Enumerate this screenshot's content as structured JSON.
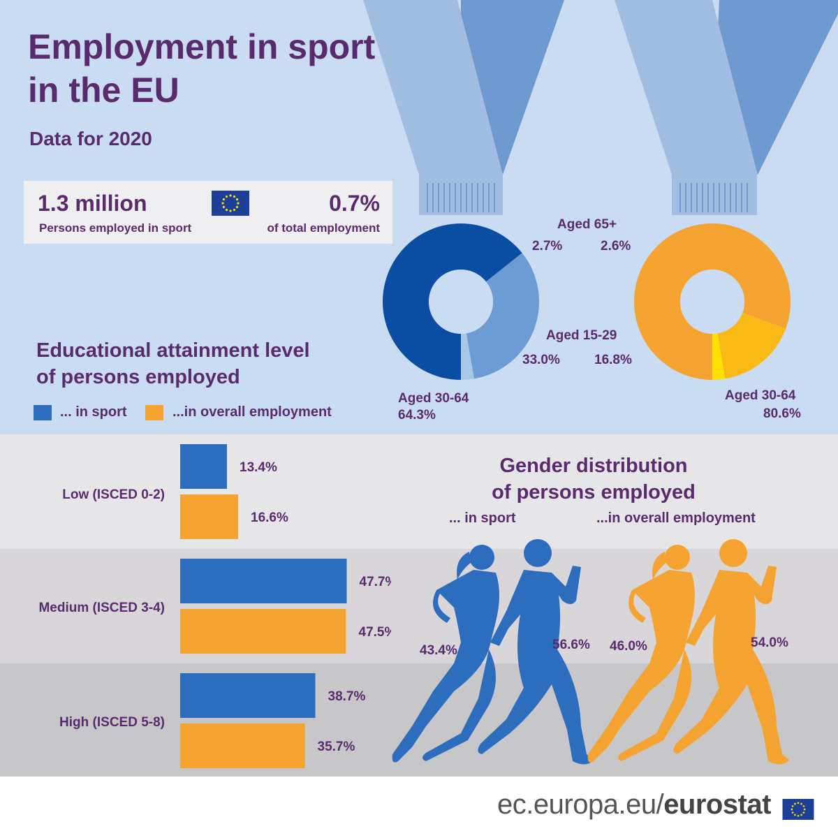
{
  "header": {
    "title_line1": "Employment in sport",
    "title_line2": "in the EU",
    "subtitle": "Data for 2020"
  },
  "kpis": {
    "persons_value": "1.3 million",
    "persons_label": "Persons employed in sport",
    "share_value": "0.7%",
    "share_label": "of total employment",
    "flag_icon": "eu-flag-icon"
  },
  "education": {
    "title_line1": "Educational attainment level",
    "title_line2": "of persons employed",
    "legend_sport": "... in sport",
    "legend_overall": "...in overall employment"
  },
  "age_labels": {
    "aged_65": "Aged 65+",
    "aged_15_29": "Aged 15-29",
    "aged_30_64": "Aged 30-64",
    "sport_65": "2.7%",
    "overall_65": "2.6%",
    "sport_15_29": "33.0%",
    "overall_15_29": "16.8%",
    "sport_30_64": "64.3%",
    "overall_30_64": "80.6%"
  },
  "gender": {
    "title_line1": "Gender distribution",
    "title_line2": "of persons employed",
    "sub_sport": "... in sport",
    "sub_overall": "...in overall employment",
    "sport_female": "43.4%",
    "sport_male": "56.6%",
    "overall_female": "46.0%",
    "overall_male": "54.0%"
  },
  "footer": {
    "url_prefix": "ec.europa.eu/",
    "url_brand": "eurostat"
  },
  "colors": {
    "sport": "#2c6dbd",
    "overall": "#f5a431",
    "title_purple": "#5a2a6e",
    "panel_blue": "#cadcf1",
    "sport_donut_dark": "#0a4ea3",
    "sport_donut_mid": "#6d9bd3",
    "sport_donut_light": "#a9c7e8",
    "overall_donut_main": "#f5a431",
    "overall_donut_mid": "#fbb917",
    "overall_donut_light": "#ffe000"
  },
  "chart_data": [
    {
      "type": "pie",
      "title": "... in sport",
      "categories": [
        "Aged 30-64",
        "Aged 15-29",
        "Aged 65+"
      ],
      "values": [
        64.3,
        33.0,
        2.7
      ]
    },
    {
      "type": "pie",
      "title": "...in overall employment",
      "categories": [
        "Aged 30-64",
        "Aged 15-29",
        "Aged 65+"
      ],
      "values": [
        80.6,
        16.8,
        2.6
      ]
    },
    {
      "type": "bar",
      "title": "Educational attainment level of persons employed",
      "categories": [
        "Low (ISCED 0-2)",
        "Medium (ISCED 3-4)",
        "High (ISCED 5-8)"
      ],
      "series": [
        {
          "name": "... in sport",
          "values": [
            13.4,
            47.7,
            38.7
          ]
        },
        {
          "name": "...in overall employment",
          "values": [
            16.6,
            47.5,
            35.7
          ]
        }
      ]
    },
    {
      "type": "bar",
      "title": "Gender distribution of persons employed",
      "categories": [
        "... in sport",
        "...in overall employment"
      ],
      "series": [
        {
          "name": "",
          "values": [
            43.4,
            46.0
          ]
        },
        {
          "name": "",
          "values": [
            56.6,
            54.0
          ]
        }
      ]
    }
  ]
}
